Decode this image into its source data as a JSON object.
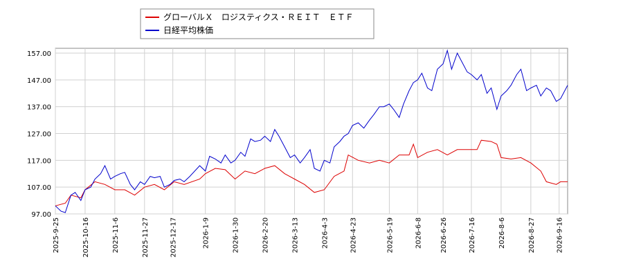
{
  "chart_data": {
    "type": "line",
    "legend_position": "top-left",
    "grid": true,
    "xlim": [
      "2025-9-25",
      "2026-9-22"
    ],
    "ylim": [
      97,
      158.8
    ],
    "xticks": [
      "2025-9-25",
      "2025-10-16",
      "2025-11-6",
      "2025-11-27",
      "2025-12-17",
      "2026-1-9",
      "2026-1-30",
      "2026-2-20",
      "2026-3-13",
      "2026-4-3",
      "2026-4-23",
      "2026-5-19",
      "2026-6-8",
      "2026-6-26",
      "2026-7-16",
      "2026-8-6",
      "2026-8-27",
      "2026-9-16"
    ],
    "yticks": [
      {
        "value": 97,
        "label": "97.00"
      },
      {
        "value": 107,
        "label": "107.00"
      },
      {
        "value": 117,
        "label": "117.00"
      },
      {
        "value": 127,
        "label": "127.00"
      },
      {
        "value": 137,
        "label": "137.00"
      },
      {
        "value": 147,
        "label": "147.00"
      },
      {
        "value": 157,
        "label": "157.00"
      }
    ],
    "series": [
      {
        "name": "グローバルＸ　ロジスティクス・ＲＥＩＴ　ＥＴＦ",
        "color": "#dd0000",
        "x": [
          "2025-9-25",
          "2025-10-2",
          "2025-10-6",
          "2025-10-13",
          "2025-10-16",
          "2025-10-23",
          "2025-10-30",
          "2025-11-6",
          "2025-11-13",
          "2025-11-20",
          "2025-11-27",
          "2025-12-4",
          "2025-12-11",
          "2025-12-18",
          "2025-12-25",
          "2026-1-5",
          "2026-1-9",
          "2026-1-16",
          "2026-1-23",
          "2026-1-30",
          "2026-2-6",
          "2026-2-13",
          "2026-2-20",
          "2026-2-27",
          "2026-3-6",
          "2026-3-13",
          "2026-3-20",
          "2026-3-27",
          "2026-4-3",
          "2026-4-10",
          "2026-4-17",
          "2026-4-20",
          "2026-4-27",
          "2026-5-5",
          "2026-5-12",
          "2026-5-19",
          "2026-5-26",
          "2026-6-2",
          "2026-6-5",
          "2026-6-8",
          "2026-6-15",
          "2026-6-22",
          "2026-6-29",
          "2026-7-6",
          "2026-7-13",
          "2026-7-20",
          "2026-7-23",
          "2026-7-30",
          "2026-8-3",
          "2026-8-6",
          "2026-8-13",
          "2026-8-20",
          "2026-8-27",
          "2026-9-3",
          "2026-9-7",
          "2026-9-14",
          "2026-9-17",
          "2026-9-22"
        ],
        "values": [
          100,
          101,
          104,
          103,
          106,
          109,
          108,
          106,
          106,
          104,
          107,
          108,
          106,
          109,
          108,
          110,
          112,
          114,
          113.5,
          110,
          113,
          112,
          114,
          115,
          112,
          110,
          108,
          105,
          106,
          111,
          113,
          119,
          117,
          116,
          117,
          116,
          119,
          119,
          123,
          118,
          120,
          121,
          119,
          121,
          121,
          121,
          124.5,
          124,
          123,
          118,
          117.5,
          118,
          116,
          113,
          109,
          108,
          109,
          109
        ]
      },
      {
        "name": "日経平均株価",
        "color": "#0000cc",
        "x": [
          "2025-9-25",
          "2025-9-29",
          "2025-10-2",
          "2025-10-6",
          "2025-10-9",
          "2025-10-13",
          "2025-10-16",
          "2025-10-20",
          "2025-10-23",
          "2025-10-27",
          "2025-10-30",
          "2025-11-3",
          "2025-11-6",
          "2025-11-10",
          "2025-11-13",
          "2025-11-17",
          "2025-11-20",
          "2025-11-24",
          "2025-11-27",
          "2025-12-1",
          "2025-12-4",
          "2025-12-8",
          "2025-12-11",
          "2025-12-15",
          "2025-12-18",
          "2025-12-22",
          "2025-12-25",
          "2025-12-29",
          "2026-1-5",
          "2026-1-9",
          "2026-1-12",
          "2026-1-16",
          "2026-1-20",
          "2026-1-23",
          "2026-1-27",
          "2026-1-30",
          "2026-2-3",
          "2026-2-6",
          "2026-2-10",
          "2026-2-13",
          "2026-2-17",
          "2026-2-20",
          "2026-2-24",
          "2026-2-27",
          "2026-3-2",
          "2026-3-6",
          "2026-3-10",
          "2026-3-13",
          "2026-3-17",
          "2026-3-20",
          "2026-3-24",
          "2026-3-27",
          "2026-3-31",
          "2026-4-3",
          "2026-4-7",
          "2026-4-10",
          "2026-4-14",
          "2026-4-17",
          "2026-4-20",
          "2026-4-23",
          "2026-4-27",
          "2026-5-1",
          "2026-5-5",
          "2026-5-8",
          "2026-5-12",
          "2026-5-15",
          "2026-5-19",
          "2026-5-22",
          "2026-5-26",
          "2026-5-29",
          "2026-6-2",
          "2026-6-5",
          "2026-6-8",
          "2026-6-11",
          "2026-6-15",
          "2026-6-18",
          "2026-6-22",
          "2026-6-26",
          "2026-6-29",
          "2026-7-2",
          "2026-7-6",
          "2026-7-9",
          "2026-7-13",
          "2026-7-16",
          "2026-7-20",
          "2026-7-23",
          "2026-7-27",
          "2026-7-30",
          "2026-8-3",
          "2026-8-6",
          "2026-8-10",
          "2026-8-13",
          "2026-8-17",
          "2026-8-20",
          "2026-8-24",
          "2026-8-27",
          "2026-8-31",
          "2026-9-3",
          "2026-9-7",
          "2026-9-10",
          "2026-9-14",
          "2026-9-17",
          "2026-9-22"
        ],
        "values": [
          100,
          98,
          97.5,
          104,
          105,
          102,
          106,
          107,
          110,
          112,
          115,
          110,
          111,
          112,
          112.5,
          108,
          106,
          109,
          108,
          111,
          110.5,
          111,
          107,
          108,
          109.5,
          110,
          109,
          111,
          115,
          113,
          118.5,
          117.5,
          116,
          119,
          116,
          117,
          120,
          118.5,
          125,
          124,
          124.5,
          126,
          124,
          128.5,
          126,
          122,
          118,
          119,
          116,
          118,
          121,
          114,
          113,
          117,
          116,
          122,
          124,
          126,
          127,
          130,
          131,
          129,
          132,
          134,
          137,
          137,
          138,
          136,
          133,
          138,
          143,
          146,
          147,
          149.5,
          144,
          143,
          151,
          153,
          158,
          151,
          157,
          154,
          150,
          149,
          147,
          149,
          142,
          144,
          136,
          141,
          143,
          145,
          149,
          151,
          143,
          144,
          145,
          141,
          144,
          143,
          139,
          140,
          145
        ]
      }
    ]
  }
}
